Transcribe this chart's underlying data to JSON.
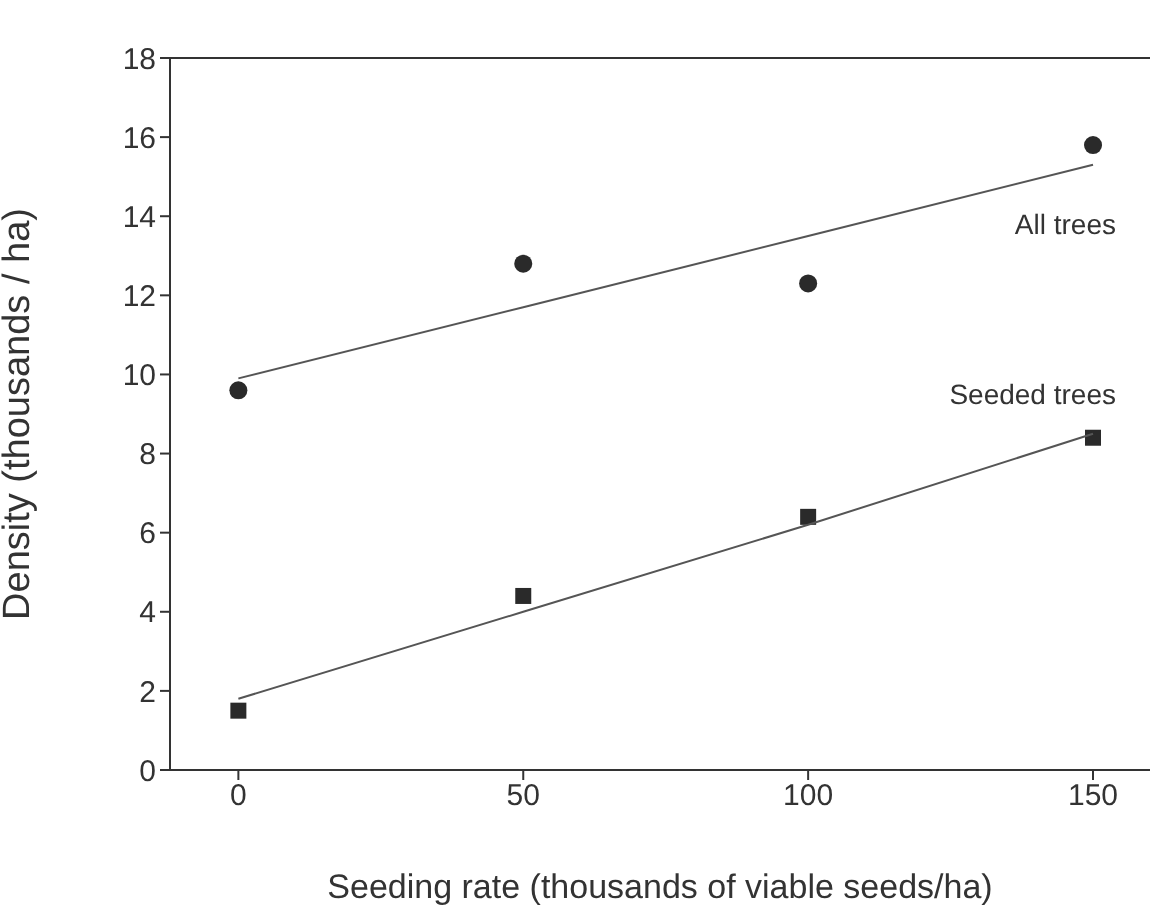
{
  "chart_data": {
    "type": "scatter",
    "xlabel": "Seeding rate (thousands of viable seeds/ha)",
    "ylabel": "Density (thousands / ha)",
    "x": [
      0,
      50,
      100,
      150
    ],
    "series": [
      {
        "color": "#2a2a2a",
        "marker": "circle",
        "values": [
          9.6,
          12.8,
          12.3,
          15.8
        ]
      },
      {
        "color": "#2a2a2a",
        "marker": "square",
        "values": [
          1.5,
          4.4,
          6.4,
          8.4
        ]
      },
      {
        "type": "line",
        "color": "#555555",
        "values": [
          9.9,
          11.7,
          13.5,
          15.3
        ]
      },
      {
        "type": "line",
        "color": "#555555",
        "values": [
          1.8,
          4.0,
          6.2,
          8.5
        ]
      }
    ],
    "annotations": [
      "All trees",
      "Seeded trees"
    ],
    "xlim": [
      -12,
      160
    ],
    "xticks": [
      0,
      50,
      100,
      150
    ],
    "ylim": [
      0,
      18
    ],
    "yticks": [
      0,
      2,
      4,
      6,
      8,
      10,
      12,
      14,
      16,
      18
    ],
    "grid": false
  }
}
